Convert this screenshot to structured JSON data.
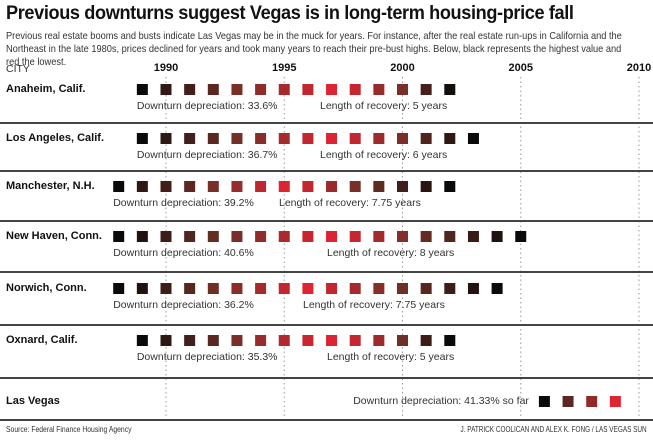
{
  "header": {
    "title": "Previous downturns suggest Vegas is in long-term housing-price fall",
    "subtitle": "Previous real estate booms and busts indicate Las Vegas may be in the muck for years. For instance, after the real estate run-ups in California and the Northeast in the late 1980s, prices declined for years and took many years to reach their pre-bust highs. Below, black represents the highest value and red the lowest.",
    "city_column_label": "CITY"
  },
  "footer": {
    "source": "Source: Federal Finance Housing Agency",
    "credit": "J. PATRICK COOLICAN AND ALEX K. FONG / LAS VEGAS SUN"
  },
  "colors": {
    "highest": "#0a0a0a",
    "lowest": "#dc2433",
    "separator": "#444444",
    "gridline": "#999999"
  },
  "chart_data": {
    "type": "heatmap",
    "title": "Previous downturns suggest Vegas is in long-term housing-price fall",
    "xlabel": "",
    "ylabel": "CITY",
    "x_ticks": [
      1990,
      1995,
      2000,
      2005,
      2010
    ],
    "x_range": [
      1987,
      2010
    ],
    "grid": true,
    "legend": "black = highest value, red = lowest value",
    "rows": [
      {
        "city": "Anaheim, Calif.",
        "start_year": 1989,
        "levels": [
          1.0,
          0.8,
          0.72,
          0.6,
          0.45,
          0.35,
          0.25,
          0.12,
          0.0,
          0.1,
          0.3,
          0.45,
          0.7,
          0.95
        ],
        "depreciation": "Downturn depreciation: 33.6%",
        "recovery": "Length of recovery: 5 years"
      },
      {
        "city": "Los Angeles, Calif.",
        "start_year": 1989,
        "levels": [
          1.0,
          0.82,
          0.72,
          0.6,
          0.48,
          0.38,
          0.25,
          0.12,
          0.0,
          0.12,
          0.28,
          0.45,
          0.65,
          0.82,
          1.0
        ],
        "depreciation": "Downturn depreciation: 36.7%",
        "recovery": "Length of recovery: 6 years"
      },
      {
        "city": "Manchester, N.H.",
        "start_year": 1988,
        "levels": [
          1.0,
          0.82,
          0.72,
          0.6,
          0.45,
          0.32,
          0.15,
          0.0,
          0.12,
          0.3,
          0.45,
          0.58,
          0.72,
          0.85,
          1.0
        ],
        "depreciation": "Downturn depreciation: 39.2%",
        "recovery": "Length of recovery: 7.75 years"
      },
      {
        "city": "New Haven, Conn.",
        "start_year": 1988,
        "levels": [
          1.0,
          0.88,
          0.75,
          0.65,
          0.55,
          0.45,
          0.35,
          0.22,
          0.1,
          0.0,
          0.1,
          0.25,
          0.4,
          0.55,
          0.65,
          0.78,
          0.9,
          1.0
        ],
        "depreciation": "Downturn depreciation: 40.6%",
        "recovery": "Length of recovery: 8 years"
      },
      {
        "city": "Norwich, Conn.",
        "start_year": 1988,
        "levels": [
          1.0,
          0.88,
          0.75,
          0.62,
          0.5,
          0.38,
          0.25,
          0.12,
          0.0,
          0.12,
          0.25,
          0.38,
          0.5,
          0.62,
          0.75,
          0.88,
          1.0
        ],
        "depreciation": "Downturn depreciation: 36.2%",
        "recovery": "Length of recovery: 7.75 years"
      },
      {
        "city": "Oxnard, Calif.",
        "start_year": 1989,
        "levels": [
          1.0,
          0.82,
          0.72,
          0.6,
          0.45,
          0.32,
          0.2,
          0.08,
          0.0,
          0.1,
          0.28,
          0.5,
          0.75,
          1.0
        ],
        "depreciation": "Downturn depreciation: 35.3%",
        "recovery": "Length of recovery: 5 years"
      },
      {
        "city": "Las Vegas",
        "start_year": 2006,
        "levels": [
          1.0,
          0.6,
          0.35,
          0.0
        ],
        "depreciation": "Downturn depreciation: 41.33% so far",
        "recovery": ""
      }
    ]
  }
}
